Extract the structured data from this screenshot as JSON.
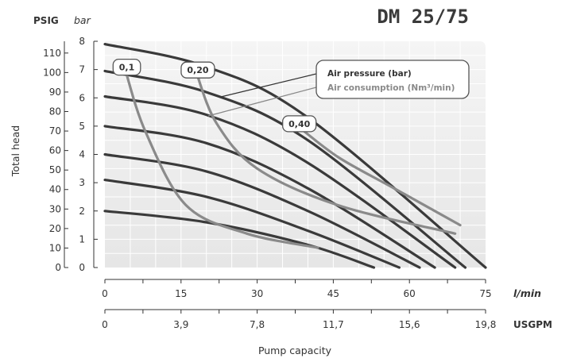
{
  "chart_data": {
    "type": "line",
    "title": "DM 25/75",
    "x_primary": {
      "label": "l/min",
      "ticks": [
        "0",
        "15",
        "30",
        "45",
        "60",
        "75"
      ],
      "range": [
        0,
        75
      ]
    },
    "x_secondary": {
      "label": "USGPM",
      "ticks": [
        "0",
        "3,9",
        "7,8",
        "11,7",
        "15,6",
        "19,8"
      ]
    },
    "xlabel": "Pump capacity",
    "y_primary": {
      "unit": "bar",
      "ticks": [
        "0",
        "1",
        "2",
        "3",
        "4",
        "5",
        "6",
        "7",
        "8"
      ],
      "range": [
        0,
        8
      ]
    },
    "y_secondary": {
      "unit": "PSIG",
      "ticks": [
        "0",
        "10",
        "20",
        "30",
        "40",
        "50",
        "60",
        "70",
        "80",
        "90",
        "100",
        "110"
      ]
    },
    "ylabel": "Total head",
    "grid": true,
    "legend": {
      "position": "top-right",
      "entries": [
        {
          "name": "Air pressure (bar)",
          "color": "#3a3a3a"
        },
        {
          "name": "Air consumption (Nm³/min)",
          "color": "#8a8a8a"
        }
      ]
    },
    "air_pressure_series": [
      {
        "name": "2",
        "points": [
          [
            0,
            2.0
          ],
          [
            20,
            1.6
          ],
          [
            40,
            0.8
          ],
          [
            53,
            0
          ]
        ]
      },
      {
        "name": "3",
        "points": [
          [
            0,
            3.1
          ],
          [
            20,
            2.5
          ],
          [
            40,
            1.3
          ],
          [
            58,
            0
          ]
        ]
      },
      {
        "name": "4",
        "points": [
          [
            0,
            4.0
          ],
          [
            20,
            3.4
          ],
          [
            40,
            2.0
          ],
          [
            62,
            0
          ]
        ]
      },
      {
        "name": "5",
        "points": [
          [
            0,
            5.0
          ],
          [
            20,
            4.4
          ],
          [
            40,
            2.8
          ],
          [
            65,
            0
          ]
        ]
      },
      {
        "name": "6",
        "points": [
          [
            0,
            6.05
          ],
          [
            20,
            5.4
          ],
          [
            40,
            3.7
          ],
          [
            69,
            0
          ]
        ]
      },
      {
        "name": "7",
        "points": [
          [
            0,
            6.95
          ],
          [
            20,
            6.2
          ],
          [
            40,
            4.5
          ],
          [
            71,
            0
          ]
        ]
      },
      {
        "name": "8",
        "points": [
          [
            0,
            7.9
          ],
          [
            20,
            7.1
          ],
          [
            40,
            5.3
          ],
          [
            75,
            0
          ]
        ]
      }
    ],
    "air_consumption_series": [
      {
        "name": "0,1",
        "label_at": [
          4,
          7.0
        ],
        "points": [
          [
            4,
            7.0
          ],
          [
            8,
            4.8
          ],
          [
            16,
            2.2
          ],
          [
            28,
            1.2
          ],
          [
            42,
            0.7
          ]
        ]
      },
      {
        "name": "0,20",
        "label_at": [
          18,
          6.9
        ],
        "points": [
          [
            18,
            6.9
          ],
          [
            22,
            5.1
          ],
          [
            30,
            3.5
          ],
          [
            46,
            2.2
          ],
          [
            69,
            1.2
          ]
        ]
      },
      {
        "name": "0,40",
        "label_at": [
          38,
          5.0
        ],
        "points": [
          [
            38,
            5.0
          ],
          [
            46,
            3.9
          ],
          [
            57,
            2.8
          ],
          [
            70,
            1.5
          ]
        ]
      }
    ]
  }
}
